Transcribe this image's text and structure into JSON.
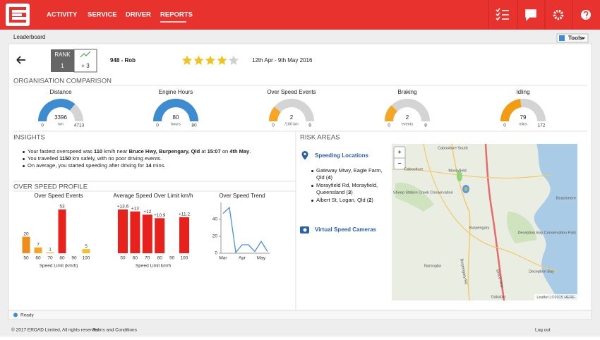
{
  "nav": {
    "items": [
      "ACTIVITY",
      "SERVICE",
      "DRIVER",
      "REPORTS"
    ]
  },
  "page_title": "Leaderboard",
  "tools": "Tools",
  "driver": {
    "rank_label": "RANK",
    "rank": 1,
    "rank_change": "+ 3",
    "name": "948 - Rob",
    "rating": 4,
    "rating_max": 5,
    "period": "12th Apr - 9th May 2016"
  },
  "organisation_comparison": {
    "title": "ORGANISATION COMPARISON",
    "gauges": [
      {
        "label": "Distance",
        "value": 3396,
        "unit": "km",
        "min": 0,
        "max": 4713,
        "color": "#3d8bd0"
      },
      {
        "label": "Engine Hours",
        "value": 80,
        "unit": "hours",
        "min": 0,
        "max": 80,
        "color": "#3d8bd0"
      },
      {
        "label": "Over Speed Events",
        "value": 2,
        "unit": "/100 km",
        "min": 0,
        "max": 9,
        "color": "#f5a623"
      },
      {
        "label": "Braking",
        "value": 2,
        "unit": "events",
        "min": 0,
        "max": 8,
        "color": "#f5a623"
      },
      {
        "label": "Idling",
        "value": 79,
        "unit": "mins",
        "min": 0,
        "max": 172,
        "color": "#f39c12"
      }
    ]
  },
  "insights": {
    "title": "INSIGHTS",
    "items": [
      [
        "Your fastest overspeed was ",
        "110",
        " km/h near ",
        "Bruce Hwy, Burpengary, Qld",
        " at ",
        "15:07",
        " on ",
        "4th May",
        "."
      ],
      [
        "You travelled ",
        "1150",
        " km safely, with no poor driving events."
      ],
      [
        "On average, you started speeding after driving for ",
        "14",
        " mins."
      ]
    ]
  },
  "over_speed_profile": {
    "title": "OVER SPEED PROFILE"
  },
  "chart_data": [
    {
      "type": "bar",
      "title": "Over Speed Events",
      "categories": [
        "50",
        "60",
        "70",
        "80",
        "90",
        "100"
      ],
      "values": [
        20,
        7,
        1,
        53,
        null,
        5
      ],
      "colors": [
        "#f08c1a",
        "#f5a623",
        "#f5a623",
        "#e8211d",
        null,
        "#f5c12a"
      ],
      "x_label": "Speed Limit (km/h)"
    },
    {
      "type": "bar",
      "title": "Average Speed Over Limit km/h",
      "categories": [
        "50",
        "60",
        "70",
        "80",
        "90",
        "100"
      ],
      "values": [
        13.6,
        13,
        12,
        10.9,
        null,
        11.2
      ],
      "value_labels": [
        "+13.6",
        "+13",
        "+12",
        "+10.9",
        null,
        "+11.2"
      ],
      "colors": [
        "#e8211d",
        "#e8211d",
        "#e8211d",
        "#e8211d",
        null,
        "#e8211d"
      ],
      "x_label": "Speed Limit km/h"
    },
    {
      "type": "line",
      "title": "Over Speed Trend",
      "categories": [
        "Mar",
        null,
        null,
        "Apr",
        null,
        null,
        "May",
        null
      ],
      "values": [
        47,
        54,
        1,
        10,
        10,
        2,
        14,
        2
      ],
      "color": "#4a90d9",
      "ylim": [
        0,
        60
      ],
      "yticks": [
        0,
        20,
        40
      ]
    }
  ],
  "risk_areas": {
    "title": "RISK AREAS",
    "speeding_locations": "Speeding Locations",
    "locations": [
      [
        "Gateway Mtwy, Eagle Farm, Qld (",
        "4",
        ")"
      ],
      [
        "Morayfield Rd, Morayfield, Queensland (",
        "3",
        ")"
      ],
      [
        "Albert St, Logan, Qld (",
        "2",
        ")"
      ]
    ],
    "speed_cameras": "Virtual Speed Cameras"
  },
  "map": {
    "zoom_in": "+",
    "zoom_out": "−",
    "labels": [
      "Caboolture South",
      "Caboolture",
      "Morayfield",
      "Sheep Station Creek Conservation",
      "Beachmere",
      "Burpengary",
      "Deception Bay Conservation Park",
      "Narangba",
      "Deception Bay",
      "Dakabin",
      "Bruce Hwy",
      "Burpengary Rd"
    ],
    "attribution": "Leaflet | ©2015 HERE."
  },
  "status": "Ready",
  "footer": {
    "copyright": "© 2017 EROAD Limited, All rights reserved.",
    "terms": "Terms and Conditions",
    "logout": "Log out"
  }
}
